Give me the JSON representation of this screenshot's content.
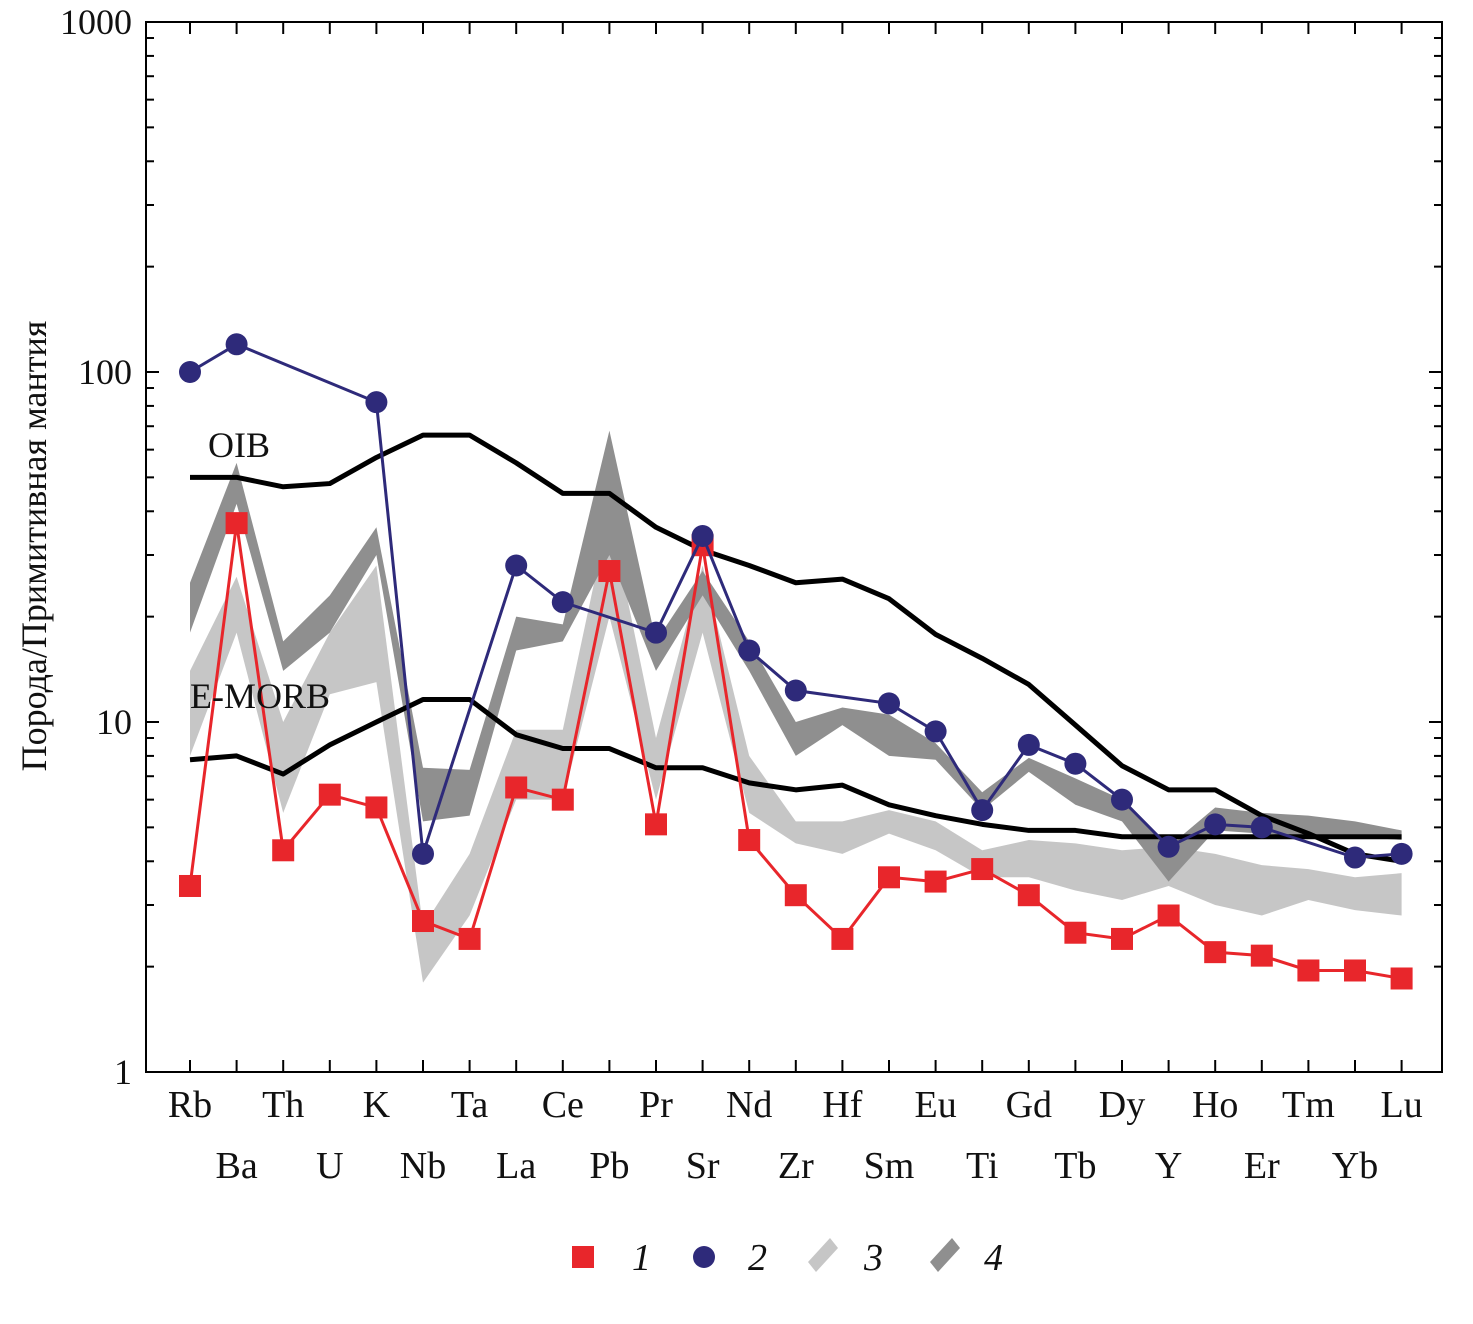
{
  "chart_data": {
    "type": "line",
    "title": "",
    "xlabel": "",
    "ylabel": "Порода/Примитивная мантия",
    "yscale": "log",
    "ylim": [
      1,
      1000
    ],
    "y_ticks": [
      "1",
      "10",
      "100",
      "1000"
    ],
    "grid": false,
    "legend_position": "bottom",
    "categories": [
      "Rb",
      "Ba",
      "Th",
      "U",
      "K",
      "Nb",
      "Ta",
      "La",
      "Ce",
      "Pb",
      "Pr",
      "Sr",
      "Nd",
      "Zr",
      "Hf",
      "Sm",
      "Eu",
      "Ti",
      "Gd",
      "Tb",
      "Dy",
      "Y",
      "Ho",
      "Er",
      "Tm",
      "Yb",
      "Lu"
    ],
    "series": [
      {
        "name": "1",
        "marker": "square",
        "color": "#e8262b",
        "values": [
          3.4,
          37,
          4.3,
          6.2,
          5.7,
          2.7,
          2.4,
          6.5,
          6.0,
          27,
          5.1,
          32,
          4.6,
          3.2,
          2.4,
          3.6,
          3.5,
          3.8,
          3.2,
          2.5,
          2.4,
          2.8,
          2.2,
          2.15,
          1.95,
          1.95,
          1.85
        ]
      },
      {
        "name": "2",
        "marker": "circle",
        "color": "#2e2a7a",
        "values": [
          100,
          120,
          null,
          null,
          82,
          4.2,
          null,
          28,
          22,
          null,
          18,
          34,
          16,
          12.3,
          null,
          11.3,
          9.4,
          5.6,
          8.6,
          7.6,
          6.0,
          4.4,
          5.1,
          5.0,
          null,
          4.1,
          4.2
        ]
      }
    ],
    "bands": [
      {
        "name": "3",
        "color": "#c6c6c6",
        "low": [
          8,
          18,
          5.5,
          12,
          13,
          1.8,
          2.8,
          6.0,
          6.0,
          20,
          6.0,
          18,
          5.5,
          4.5,
          4.2,
          4.8,
          4.3,
          3.6,
          3.6,
          3.3,
          3.1,
          3.4,
          3.0,
          2.8,
          3.1,
          2.9,
          2.8
        ],
        "high": [
          14,
          26,
          10,
          18,
          28,
          2.6,
          4.2,
          9.5,
          9.5,
          40,
          9.0,
          28,
          8.0,
          5.2,
          5.2,
          5.6,
          5.2,
          4.3,
          4.6,
          4.5,
          4.3,
          4.4,
          4.2,
          3.9,
          3.8,
          3.6,
          3.7
        ]
      },
      {
        "name": "4",
        "color": "#8f8f8f",
        "low": [
          18,
          42,
          14,
          18,
          30,
          5.2,
          5.4,
          16,
          17,
          30,
          14,
          23,
          14,
          8.0,
          9.8,
          8.0,
          7.8,
          5.6,
          7.2,
          5.8,
          5.2,
          3.5,
          4.9,
          4.8,
          4.7,
          4.7,
          4.6
        ],
        "high": [
          25,
          55,
          17,
          23,
          36,
          7.4,
          7.3,
          20,
          19,
          68,
          17,
          27,
          17,
          10,
          11,
          10.5,
          8.7,
          6.3,
          7.9,
          6.9,
          6.0,
          4.4,
          5.7,
          5.5,
          5.4,
          5.2,
          4.9
        ]
      }
    ],
    "reference_lines": [
      {
        "name": "OIB",
        "color": "#000000",
        "values": [
          50,
          50,
          47,
          48,
          57,
          66,
          66,
          55,
          45,
          45,
          36,
          31,
          28,
          25,
          25.6,
          22.5,
          17.8,
          15.2,
          12.8,
          9.8,
          7.5,
          6.4,
          6.4,
          5.4,
          4.8,
          4.2,
          4.0
        ]
      },
      {
        "name": "E-MORB",
        "color": "#000000",
        "values": [
          7.8,
          8.0,
          7.1,
          8.6,
          10.0,
          11.6,
          11.6,
          9.2,
          8.4,
          8.4,
          7.4,
          7.4,
          6.7,
          6.4,
          6.6,
          5.8,
          5.4,
          5.1,
          4.9,
          4.9,
          4.7,
          4.7,
          4.7,
          4.7,
          4.7,
          4.7,
          4.7
        ]
      }
    ],
    "legend": [
      "1",
      "2",
      "3",
      "4"
    ]
  }
}
